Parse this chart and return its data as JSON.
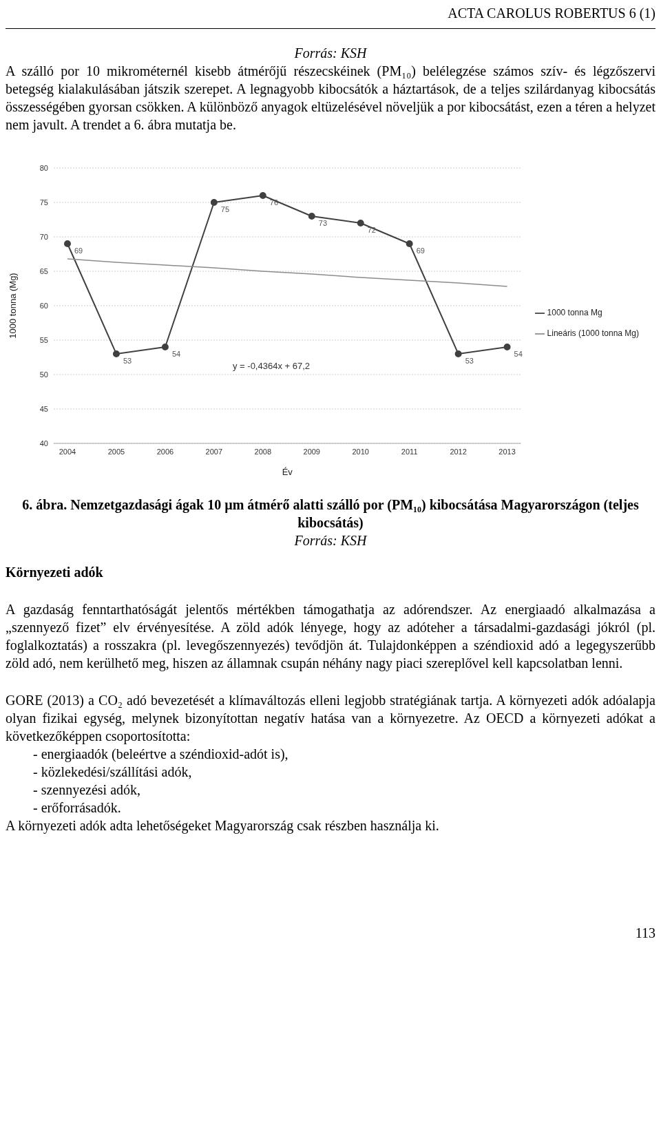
{
  "chart_data": {
    "type": "line",
    "title": "6. ábra. Nemzetgazdasági ágak 10 µm átmérő alatti szálló por (PM₁₀) kibocsátása Magyarországon (teljes kibocsátás)",
    "xlabel": "Év",
    "ylabel": "1000 tonna (Mg)",
    "categories": [
      "2004",
      "2005",
      "2006",
      "2007",
      "2008",
      "2009",
      "2010",
      "2011",
      "2012",
      "2013"
    ],
    "series": [
      {
        "name": "1000 tonna Mg",
        "color": "#404040",
        "marker": "circle",
        "values": [
          69,
          53,
          54,
          75,
          76,
          73,
          72,
          69,
          53,
          54
        ],
        "value_labels": [
          "69",
          "53",
          "54",
          "75",
          "76",
          "73",
          "72",
          "69",
          "53",
          "54"
        ]
      },
      {
        "name": "Lineáris (1000 tonna Mg)",
        "color": "#8c8c8c",
        "marker": "none",
        "values": [
          66.8,
          66.3,
          65.9,
          65.5,
          65.0,
          64.6,
          64.1,
          63.7,
          63.3,
          62.8
        ]
      }
    ],
    "ylim": [
      40,
      80
    ],
    "yticks": [
      40,
      45,
      50,
      55,
      60,
      65,
      70,
      75,
      80
    ],
    "grid": "y",
    "legend": "right",
    "annotations": [
      "ACTA CAROLUS ROBERTUS 6 (1)",
      "Forrás: KSH",
      "A szálló por 10 mikrométernél kisebb átmérőjű részecskéinek (PM₁₀) belélegzése számos szív- és légzőszervi betegség kialakulásában játszik szerepet. A legnagyobb kibocsátók a háztartások, de a teljes szilárdanyag kibocsátás összességében gyorsan csökken. A különböző anyagok eltüzelésével növeljük a por kibocsátást, ezen a téren a helyzet nem javult. A trendet a 6. ábra mutatja be.",
      "y = -0,4364x + 67,2",
      "Forrás: KSH",
      "Környezeti adók",
      "A gazdaság fenntarthatóságát jelentős mértékben támogathatja az adórendszer. Az energiaadó alkalmazása a „szennyező fizet” elv érvényesítése. A zöld adók lényege, hogy az adóteher a társadalmi-gazdasági jókról (pl. foglalkoztatás) a rosszakra (pl. levegőszennyezés) tevődjön át. Tulajdonképpen a széndioxid adó a legegyszerűbb zöld adó, nem kerülhető meg, hiszen az államnak csupán néhány nagy piaci szereplővel kell kapcsolatban lenni.",
      "GORE (2013) a CO₂ adó bevezetését a klímaváltozás elleni legjobb stratégiának tartja. A környezeti adók adóalapja olyan fizikai egység, melynek bizonyítottan negatív hatása van a környezetre. Az OECD a környezeti adókat a következőképpen csoportosította:",
      "-   energiaadók (beleértve a széndioxid-adót is),",
      "-   közlekedési/szállítási adók,",
      "-   szennyezési adók,",
      "-   erőforrásadók.",
      "A környezeti adók adta lehetőségeket Magyarország csak részben használja ki.",
      "113"
    ]
  }
}
